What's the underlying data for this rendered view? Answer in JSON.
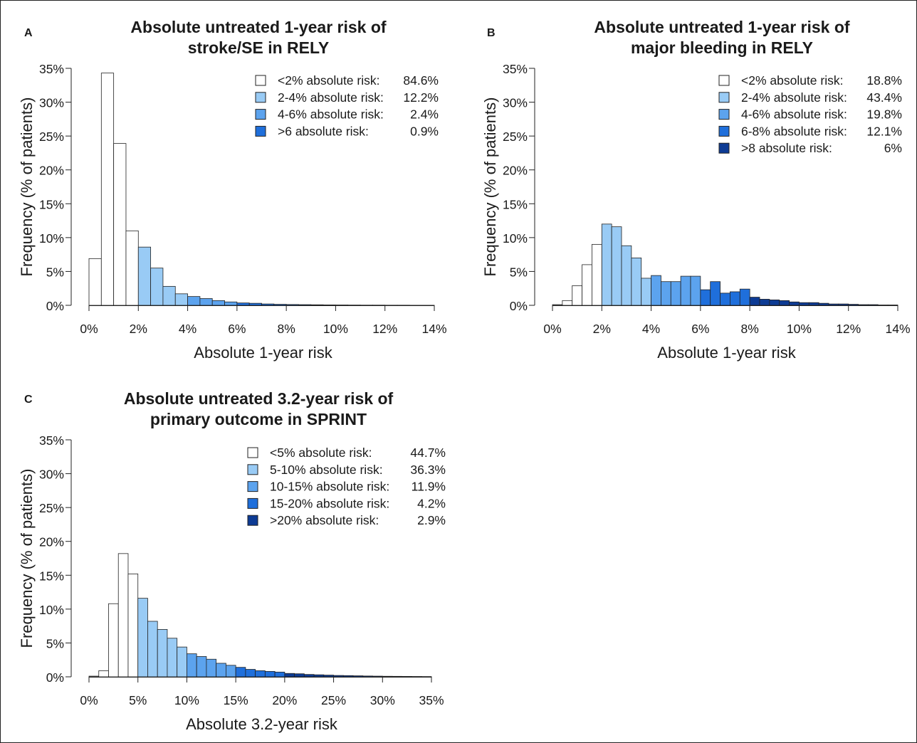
{
  "chart_data": [
    {
      "type": "bar",
      "panel_label": "A",
      "title": "Absolute untreated 1-year risk of",
      "subtitle": "stroke/SE in RELY",
      "xlabel": "Absolute 1-year risk",
      "ylabel": "Frequency (% of patients)",
      "xlim": [
        0,
        14
      ],
      "ylim": [
        0,
        35
      ],
      "xticks": [
        "0%",
        "2%",
        "4%",
        "6%",
        "8%",
        "10%",
        "12%",
        "14%"
      ],
      "yticks": [
        "0%",
        "5%",
        "10%",
        "15%",
        "20%",
        "25%",
        "30%",
        "35%"
      ],
      "bin_width": 0.5,
      "bin_start": 0,
      "values": [
        6.9,
        34.3,
        23.9,
        11.0,
        8.6,
        5.5,
        2.8,
        1.7,
        1.3,
        1.0,
        0.7,
        0.5,
        0.35,
        0.3,
        0.2,
        0.15,
        0.12,
        0.1,
        0.08,
        0.06,
        0.05,
        0.04,
        0.03,
        0.03,
        0.02,
        0.02,
        0.01,
        0.01
      ],
      "groups": [
        {
          "label": "<2% absolute risk:",
          "value": "84.6%",
          "color": "#ffffff",
          "from": 0,
          "to": 2
        },
        {
          "label": "2-4% absolute risk:",
          "value": "12.2%",
          "color": "#99cbf5",
          "from": 2,
          "to": 4
        },
        {
          "label": "4-6% absolute risk:",
          "value": "2.4%",
          "color": "#5ca3ee",
          "from": 4,
          "to": 6
        },
        {
          "label": ">6 absolute risk:",
          "value": "0.9%",
          "color": "#1f6fdb",
          "from": 6,
          "to": 99
        }
      ]
    },
    {
      "type": "bar",
      "panel_label": "B",
      "title": "Absolute untreated 1-year risk of",
      "subtitle": "major bleeding in RELY",
      "xlabel": "Absolute 1-year risk",
      "ylabel": "Frequency (% of patients)",
      "xlim": [
        0,
        14
      ],
      "ylim": [
        0,
        35
      ],
      "xticks": [
        "0%",
        "2%",
        "4%",
        "6%",
        "8%",
        "10%",
        "12%",
        "14%"
      ],
      "yticks": [
        "0%",
        "5%",
        "10%",
        "15%",
        "20%",
        "25%",
        "30%",
        "35%"
      ],
      "bin_width": 0.4,
      "bin_start": 0,
      "values": [
        0.1,
        0.7,
        2.9,
        6.0,
        9.0,
        12.0,
        11.6,
        8.8,
        7.0,
        4.0,
        4.4,
        3.5,
        3.5,
        4.3,
        4.3,
        2.3,
        3.5,
        1.8,
        2.0,
        2.4,
        1.2,
        0.9,
        0.8,
        0.7,
        0.5,
        0.4,
        0.4,
        0.3,
        0.2,
        0.2,
        0.15,
        0.1,
        0.1,
        0.05,
        0.05
      ],
      "groups": [
        {
          "label": "<2% absolute risk:",
          "value": "18.8%",
          "color": "#ffffff",
          "from": 0,
          "to": 2
        },
        {
          "label": "2-4% absolute risk:",
          "value": "43.4%",
          "color": "#99cbf5",
          "from": 2,
          "to": 4
        },
        {
          "label": "4-6% absolute risk:",
          "value": "19.8%",
          "color": "#5ca3ee",
          "from": 4,
          "to": 6
        },
        {
          "label": "6-8% absolute risk:",
          "value": "12.1%",
          "color": "#1f6fdb",
          "from": 6,
          "to": 8
        },
        {
          "label": ">8 absolute risk:",
          "value": "6%",
          "color": "#0d3b94",
          "from": 8,
          "to": 99
        }
      ]
    },
    {
      "type": "bar",
      "panel_label": "C",
      "title": "Absolute untreated 3.2-year risk of",
      "subtitle": "primary outcome in SPRINT",
      "xlabel": "Absolute 3.2-year risk",
      "ylabel": "Frequency (% of patients)",
      "xlim": [
        0,
        35
      ],
      "ylim": [
        0,
        35
      ],
      "xticks": [
        "0%",
        "5%",
        "10%",
        "15%",
        "20%",
        "25%",
        "30%",
        "35%"
      ],
      "yticks": [
        "0%",
        "5%",
        "10%",
        "15%",
        "20%",
        "25%",
        "30%",
        "35%"
      ],
      "bin_width": 1,
      "bin_start": 0,
      "values": [
        0.1,
        0.9,
        10.8,
        18.2,
        15.2,
        11.6,
        8.2,
        7.0,
        5.7,
        4.4,
        3.4,
        3.0,
        2.6,
        2.0,
        1.7,
        1.4,
        1.1,
        0.9,
        0.8,
        0.7,
        0.5,
        0.45,
        0.35,
        0.3,
        0.25,
        0.2,
        0.18,
        0.15,
        0.12,
        0.1,
        0.08,
        0.07,
        0.06,
        0.05,
        0.04,
        0.03,
        0.02
      ],
      "groups": [
        {
          "label": "<5% absolute risk:",
          "value": "44.7%",
          "color": "#ffffff",
          "from": 0,
          "to": 5
        },
        {
          "label": "5-10% absolute risk:",
          "value": "36.3%",
          "color": "#99cbf5",
          "from": 5,
          "to": 10
        },
        {
          "label": "10-15% absolute risk:",
          "value": "11.9%",
          "color": "#5ca3ee",
          "from": 10,
          "to": 15
        },
        {
          "label": "15-20% absolute risk:",
          "value": "4.2%",
          "color": "#1f6fdb",
          "from": 15,
          "to": 20
        },
        {
          "label": ">20% absolute risk:",
          "value": "2.9%",
          "color": "#0d3b94",
          "from": 20,
          "to": 999
        }
      ]
    }
  ]
}
